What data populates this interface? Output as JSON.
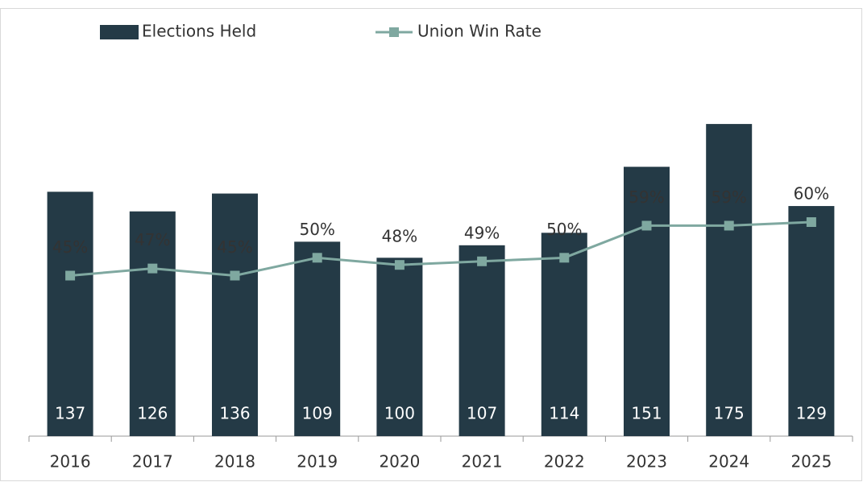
{
  "chart_data": {
    "type": "bar",
    "categories": [
      "2016",
      "2017",
      "2018",
      "2019",
      "2020",
      "2021",
      "2022",
      "2023",
      "2024",
      "2025"
    ],
    "series": [
      {
        "name": "Elections Held",
        "type": "bar",
        "color": "#243a46",
        "values": [
          137,
          126,
          136,
          109,
          100,
          107,
          114,
          151,
          175,
          129
        ]
      },
      {
        "name": "Union Win Rate",
        "type": "line",
        "axis": "y2",
        "color": "#7fa8a0",
        "values": [
          45,
          47,
          45,
          50,
          48,
          49,
          50,
          59,
          59,
          60
        ],
        "value_labels": [
          "45%",
          "47%",
          "45%",
          "50%",
          "48%",
          "49%",
          "50%",
          "59%",
          "59%",
          "60%"
        ]
      }
    ],
    "ylim": [
      0,
      240
    ],
    "y2lim": [
      0,
      120
    ],
    "legend": "top"
  }
}
